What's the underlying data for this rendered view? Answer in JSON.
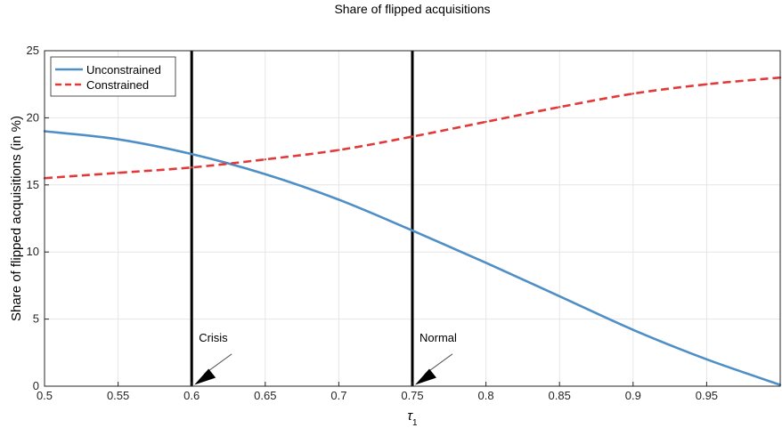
{
  "chart_data": {
    "type": "line",
    "title": "Share of flipped acquisitions",
    "xlabel": "τ1",
    "ylabel": "Share of flipped acquisitions (in %)",
    "xlim": [
      0.5,
      1.0
    ],
    "ylim": [
      0,
      25
    ],
    "xticks": [
      0.5,
      0.55,
      0.6,
      0.65,
      0.7,
      0.75,
      0.8,
      0.85,
      0.9,
      0.95
    ],
    "xtick_labels": [
      "0.5",
      "0.55",
      "0.6",
      "0.65",
      "0.7",
      "0.75",
      "0.8",
      "0.85",
      "0.9",
      "0.95"
    ],
    "yticks": [
      0,
      5,
      10,
      15,
      20,
      25
    ],
    "ytick_labels": [
      "0",
      "5",
      "10",
      "15",
      "20",
      "25"
    ],
    "grid": true,
    "legend_position": "top-left",
    "series": [
      {
        "name": "Unconstrained",
        "color": "#4f8fc6",
        "style": "solid",
        "x": [
          0.5,
          0.55,
          0.6,
          0.65,
          0.7,
          0.75,
          0.8,
          0.85,
          0.9,
          0.95,
          1.0
        ],
        "y": [
          19.0,
          18.4,
          17.3,
          15.8,
          13.9,
          11.6,
          9.2,
          6.7,
          4.2,
          2.0,
          0.1
        ]
      },
      {
        "name": "Constrained",
        "color": "#e03a3a",
        "style": "dashed",
        "x": [
          0.5,
          0.55,
          0.6,
          0.65,
          0.7,
          0.75,
          0.8,
          0.85,
          0.9,
          0.95,
          1.0
        ],
        "y": [
          15.5,
          15.9,
          16.3,
          16.9,
          17.6,
          18.6,
          19.7,
          20.8,
          21.8,
          22.5,
          23.0
        ]
      }
    ],
    "vertical_lines": [
      {
        "x": 0.6,
        "label": "Crisis",
        "color": "#000000"
      },
      {
        "x": 0.75,
        "label": "Normal",
        "color": "#000000"
      }
    ]
  }
}
